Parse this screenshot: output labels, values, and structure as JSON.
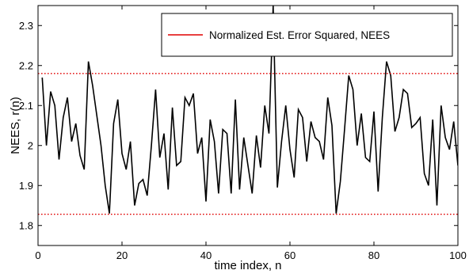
{
  "chart_data": {
    "type": "line",
    "title": "",
    "xlabel": "time index, n",
    "ylabel": "NEES, r(n)",
    "xlim": [
      0,
      100
    ],
    "ylim": [
      1.75,
      2.35
    ],
    "xticks": [
      0,
      20,
      40,
      60,
      80,
      100
    ],
    "xtick_labels": [
      "0",
      "20",
      "40",
      "60",
      "80",
      "100"
    ],
    "yticks": [
      1.8,
      1.9,
      2.0,
      2.1,
      2.2,
      2.3
    ],
    "ytick_labels": [
      "1.8",
      "1.9",
      "2",
      "2.1",
      "2.2",
      "2.3"
    ],
    "grid": false,
    "legend": {
      "position": "top-right",
      "entries": [
        {
          "label": "Normalized Est. Error Squared, NEES",
          "color": "#e00000",
          "style": "solid"
        }
      ]
    },
    "series": [
      {
        "color": "#000000",
        "style": "solid",
        "x": [
          1,
          2,
          3,
          4,
          5,
          6,
          7,
          8,
          9,
          10,
          11,
          12,
          13,
          14,
          15,
          16,
          17,
          18,
          19,
          20,
          21,
          22,
          23,
          24,
          25,
          26,
          27,
          28,
          29,
          30,
          31,
          32,
          33,
          34,
          35,
          36,
          37,
          38,
          39,
          40,
          41,
          42,
          43,
          44,
          45,
          46,
          47,
          48,
          49,
          50,
          51,
          52,
          53,
          54,
          55,
          56,
          57,
          58,
          59,
          60,
          61,
          62,
          63,
          64,
          65,
          66,
          67,
          68,
          69,
          70,
          71,
          72,
          73,
          74,
          75,
          76,
          77,
          78,
          79,
          80,
          81,
          82,
          83,
          84,
          85,
          86,
          87,
          88,
          89,
          90,
          91,
          92,
          93,
          94,
          95,
          96,
          97,
          98,
          99,
          100
        ],
        "y": [
          2.17,
          2.0,
          2.135,
          2.1,
          1.965,
          2.07,
          2.12,
          2.01,
          2.055,
          1.975,
          1.94,
          2.21,
          2.15,
          2.075,
          2.0,
          1.9,
          1.83,
          2.055,
          2.115,
          1.98,
          1.94,
          2.01,
          1.85,
          1.905,
          1.915,
          1.875,
          2.0,
          2.14,
          1.97,
          2.03,
          1.89,
          2.095,
          1.95,
          1.96,
          2.12,
          2.1,
          2.13,
          1.98,
          2.02,
          1.86,
          2.065,
          2.01,
          1.88,
          2.04,
          2.03,
          1.88,
          2.115,
          1.89,
          2.02,
          1.95,
          1.88,
          2.025,
          1.945,
          2.1,
          2.03,
          2.35,
          1.895,
          2.01,
          2.1,
          1.99,
          1.92,
          2.09,
          2.07,
          1.96,
          2.06,
          2.02,
          2.01,
          1.965,
          2.12,
          2.05,
          1.83,
          1.91,
          2.04,
          2.175,
          2.14,
          2.0,
          2.08,
          1.97,
          1.96,
          2.085,
          1.885,
          2.07,
          2.21,
          2.175,
          2.035,
          2.07,
          2.14,
          2.13,
          2.045,
          2.055,
          2.07,
          1.93,
          1.9,
          2.065,
          1.85,
          2.1,
          2.02,
          1.99,
          2.06,
          1.95
        ]
      },
      {
        "color": "#e00000",
        "style": "dotted",
        "x": [
          0,
          100
        ],
        "y": [
          2.18,
          2.18
        ]
      },
      {
        "color": "#e00000",
        "style": "dotted",
        "x": [
          0,
          100
        ],
        "y": [
          1.828,
          1.828
        ]
      }
    ]
  }
}
